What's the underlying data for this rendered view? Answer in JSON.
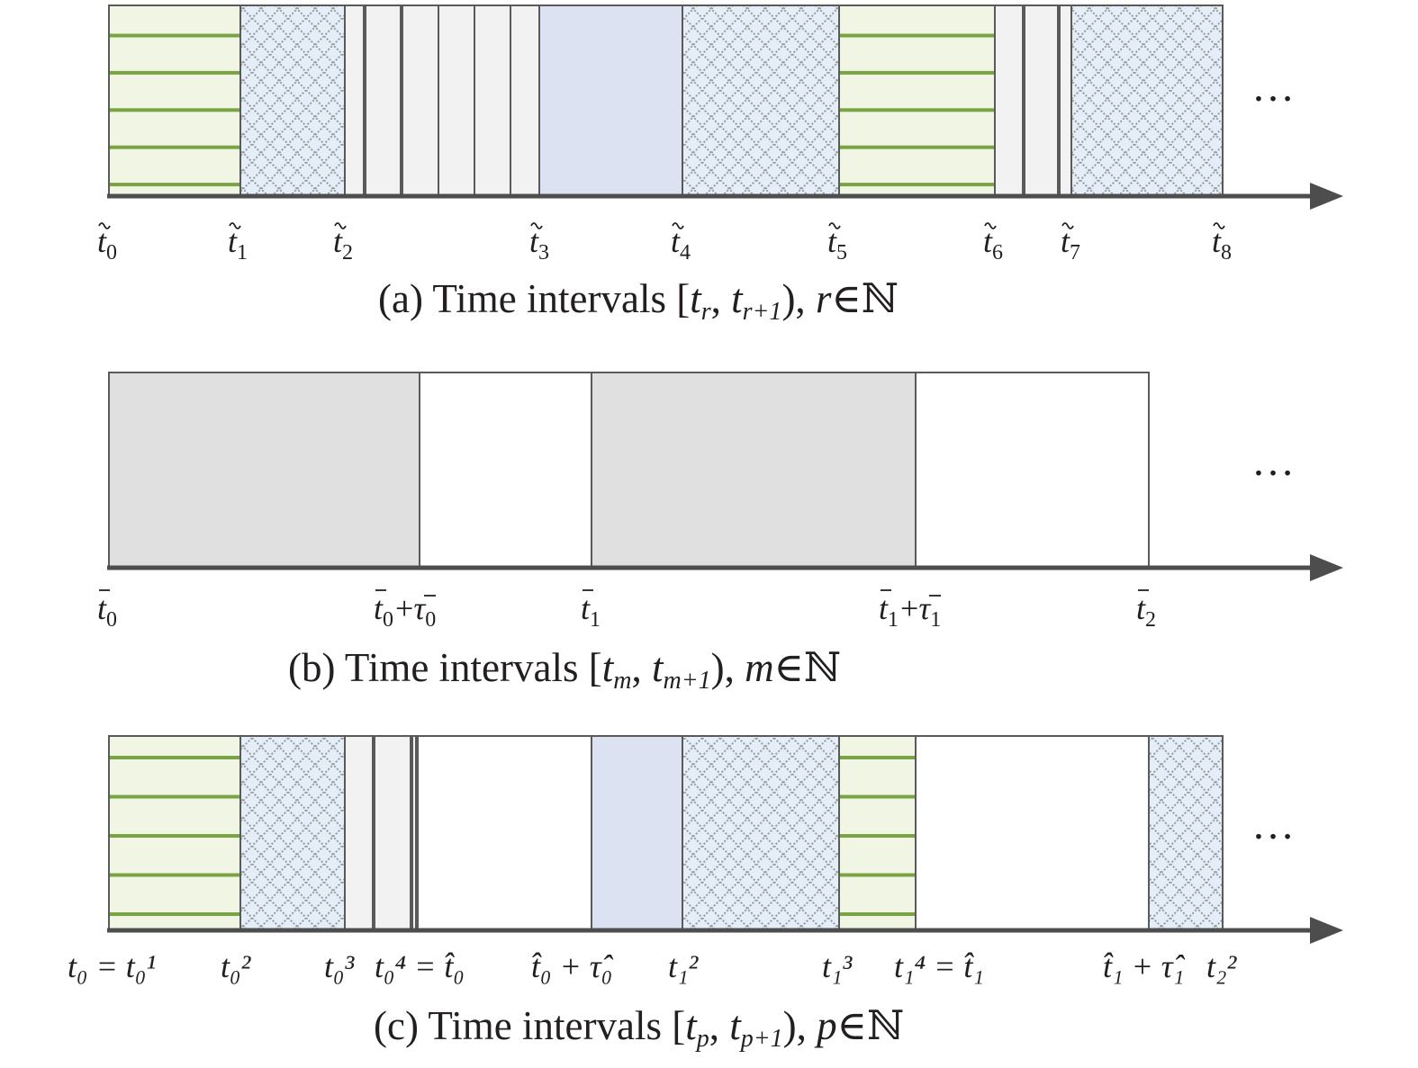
{
  "panels": {
    "a": {
      "caption": {
        "prefix": "(a) Time intervals [",
        "sym1": "t",
        "sub1": "r",
        "mid": ", ",
        "sym2": "t",
        "sub2": "r+1",
        "close": "), ",
        "var": "r",
        "setin": "∈ℕ"
      },
      "ticks": [
        {
          "acc": "~",
          "base": "t",
          "sub": "0"
        },
        {
          "acc": "~",
          "base": "t",
          "sub": "1"
        },
        {
          "acc": "~",
          "base": "t",
          "sub": "2"
        },
        {
          "acc": "~",
          "base": "t",
          "sub": "3"
        },
        {
          "acc": "~",
          "base": "t",
          "sub": "4"
        },
        {
          "acc": "~",
          "base": "t",
          "sub": "5"
        },
        {
          "acc": "~",
          "base": "t",
          "sub": "6"
        },
        {
          "acc": "~",
          "base": "t",
          "sub": "7"
        },
        {
          "acc": "~",
          "base": "t",
          "sub": "8"
        }
      ],
      "ellipsis": "…"
    },
    "b": {
      "caption": {
        "prefix": "(b) Time intervals [",
        "sym1": "t",
        "sub1": "m",
        "mid": ", ",
        "sym2": "t",
        "sub2": "m+1",
        "close": "), ",
        "var": "m",
        "setin": "∈ℕ"
      },
      "ticks": [
        {
          "acc": "‾",
          "base": "t",
          "sub": "0"
        },
        {
          "acc": "‾",
          "base": "t",
          "sub": "0",
          "plus": "+",
          "acc2": "‾",
          "base2": "τ",
          "sub2": "0"
        },
        {
          "acc": "‾",
          "base": "t",
          "sub": "1"
        },
        {
          "acc": "‾",
          "base": "t",
          "sub": "1",
          "plus": "+",
          "acc2": "‾",
          "base2": "τ",
          "sub2": "1"
        },
        {
          "acc": "‾",
          "base": "t",
          "sub": "2"
        }
      ],
      "ellipsis": "…"
    },
    "c": {
      "caption": {
        "prefix": "(c) Time intervals [",
        "sym1": "t",
        "sub1": "p",
        "mid": ", ",
        "sym2": "t",
        "sub2": "p+1",
        "close": "), ",
        "var": "p",
        "setin": "∈ℕ"
      },
      "ticks": [
        {
          "text": "t₀ = t₀¹"
        },
        {
          "text": "t₀²"
        },
        {
          "text": "t₀³"
        },
        {
          "text": "t₀⁴ = t̂₀"
        },
        {
          "text": "t̂₀ + τ̂₀"
        },
        {
          "text": "t₁²"
        },
        {
          "text": "t₁³"
        },
        {
          "text": "t₁⁴ = t̂₁"
        },
        {
          "text": "t̂₁ + τ̂₁"
        },
        {
          "text": "t₂²"
        }
      ],
      "ellipsis": "…"
    }
  },
  "colors": {
    "stroke": "#5a5a5a",
    "axis": "#4d4d4d",
    "stripe_bg": "#f0f5e4",
    "stripe_line": "#7aa444",
    "hatch_bg": "#e3eef8",
    "hatch_line": "#9a9a9a",
    "light_gray": "#f2f2f2",
    "lavender": "#dde2f2",
    "gray_fill": "#e0e0e0"
  }
}
